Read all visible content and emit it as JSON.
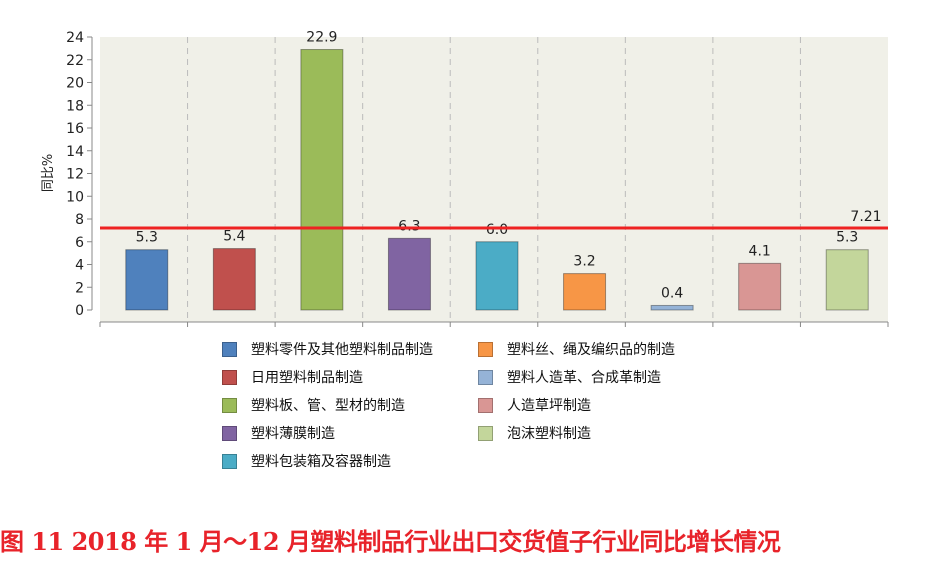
{
  "chart_data": {
    "type": "bar",
    "categories": [
      "塑料零件及其他塑料制品制造",
      "日用塑料制品制造",
      "塑料板、管、型材的制造",
      "塑料薄膜制造",
      "塑料包装箱及容器制造",
      "塑料丝、绳及编织品的制造",
      "塑料人造革、合成革制造",
      "人造草坪制造",
      "泡沫塑料制造"
    ],
    "values": [
      5.3,
      5.4,
      22.9,
      6.3,
      6.0,
      3.2,
      0.4,
      4.1,
      5.3
    ],
    "value_labels": [
      "5.3",
      "5.4",
      "22.9",
      "6.3",
      "6.0",
      "3.2",
      "0.4",
      "4.1",
      "5.3"
    ],
    "colors": [
      "#4f81bd",
      "#c0504d",
      "#9bbb59",
      "#8064a2",
      "#4bacc6",
      "#f79646",
      "#95b3d7",
      "#d99694",
      "#c3d69b"
    ],
    "ylabel": "同比%",
    "ylim": [
      0,
      24
    ],
    "yticks": [
      "0",
      "2",
      "4",
      "6",
      "8",
      "10",
      "12",
      "14",
      "16",
      "18",
      "20",
      "22",
      "24"
    ],
    "reference_line": {
      "value": 7.21,
      "label": "7.21",
      "color": "#ee2222"
    },
    "grid": "vertical dashed",
    "legend_position": "bottom",
    "plot_background": "#f0f0e8"
  },
  "caption": "图 11  2018 年 1 月～12 月塑料制品行业出口交货值子行业同比增长情况"
}
